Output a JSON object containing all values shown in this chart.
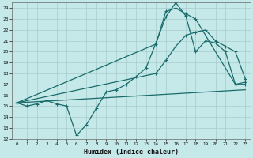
{
  "xlabel": "Humidex (Indice chaleur)",
  "bg_color": "#c5e8e8",
  "grid_color": "#a8cccc",
  "line_color": "#1a6b6b",
  "xlim": [
    -0.5,
    23.5
  ],
  "ylim": [
    12,
    24.5
  ],
  "xticks": [
    0,
    1,
    2,
    3,
    4,
    5,
    6,
    7,
    8,
    9,
    10,
    11,
    12,
    13,
    14,
    15,
    16,
    17,
    18,
    19,
    20,
    21,
    22,
    23
  ],
  "yticks": [
    12,
    13,
    14,
    15,
    16,
    17,
    18,
    19,
    20,
    21,
    22,
    23,
    24
  ],
  "curve1_x": [
    0,
    1,
    2,
    3,
    4,
    5,
    6,
    7,
    8,
    9,
    10,
    11,
    12,
    13,
    14,
    15,
    16,
    17,
    18,
    19,
    20,
    21,
    22,
    23
  ],
  "curve1_y": [
    15.3,
    15.0,
    15.2,
    15.5,
    15.2,
    15.0,
    12.3,
    13.3,
    14.8,
    16.3,
    16.5,
    17.0,
    17.7,
    18.5,
    20.8,
    23.2,
    24.5,
    23.3,
    20.0,
    21.0,
    20.8,
    20.0,
    17.0,
    17.0
  ],
  "curve2_x": [
    0,
    14,
    15,
    16,
    17,
    18,
    22,
    23
  ],
  "curve2_y": [
    15.3,
    20.7,
    23.7,
    24.0,
    23.5,
    23.0,
    17.0,
    17.2
  ],
  "curve3_x": [
    0,
    14,
    15,
    16,
    17,
    18,
    19,
    20,
    21,
    22,
    23
  ],
  "curve3_y": [
    15.3,
    18.0,
    19.2,
    20.5,
    21.5,
    21.8,
    22.0,
    21.0,
    20.5,
    20.0,
    17.5
  ],
  "curve4_x": [
    0,
    23
  ],
  "curve4_y": [
    15.3,
    16.5
  ]
}
